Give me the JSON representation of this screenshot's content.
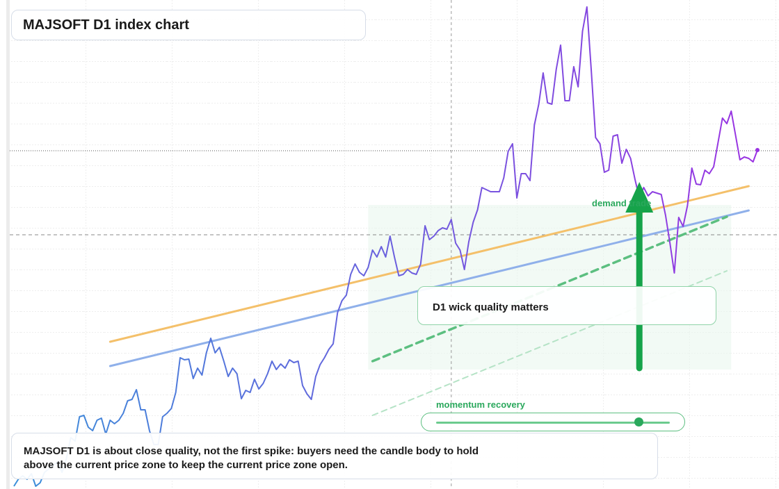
{
  "chart_data": {
    "type": "line",
    "title": "MAJSOFT D1 index chart",
    "note": "D1 wick quality matters",
    "zone_label": "demand trade",
    "slider_label": "momentum recovery",
    "body": [
      "MAJSOFT D1 is about close quality, not the first spike: buyers need the candle body to hold",
      "above the current price zone to keep the current price zone open."
    ],
    "xlim": [
      0,
      170
    ],
    "ylim": [
      0,
      704
    ],
    "series": [
      {
        "colors": [
          "#3a8fd9",
          "#9a32e2"
        ],
        "values": [
          4,
          14,
          19,
          14,
          22,
          4,
          9,
          24,
          29,
          34,
          39,
          24,
          44,
          74,
          69,
          104,
          106,
          89,
          84,
          99,
          102,
          79,
          99,
          94,
          99,
          109,
          127,
          129,
          143,
          114,
          114,
          84,
          64,
          64,
          104,
          109,
          116,
          139,
          189,
          186,
          187,
          159,
          174,
          164,
          196,
          217,
          196,
          204,
          184,
          162,
          174,
          166,
          130,
          142,
          139,
          158,
          144,
          152,
          166,
          184,
          172,
          180,
          174,
          186,
          182,
          184,
          149,
          137,
          129,
          162,
          179,
          189,
          201,
          209,
          254,
          271,
          279,
          309,
          324,
          312,
          307,
          319,
          344,
          334,
          349,
          334,
          364,
          334,
          307,
          309,
          316,
          311,
          309,
          324,
          379,
          359,
          364,
          372,
          376,
          374,
          388,
          354,
          344,
          316,
          356,
          384,
          402,
          434,
          431,
          428,
          428,
          428,
          448,
          486,
          497,
          419,
          454,
          454,
          444,
          524,
          554,
          599,
          556,
          554,
          604,
          639,
          559,
          559,
          608,
          579,
          659,
          694,
          604,
          506,
          497,
          456,
          459,
          508,
          510,
          469,
          489,
          476,
          446,
          419,
          434,
          422,
          428,
          426,
          424,
          394,
          354,
          311,
          391,
          378,
          408,
          462,
          439,
          438,
          459,
          454,
          464,
          499,
          534,
          526,
          544,
          509,
          474,
          478,
          476,
          471,
          488
        ]
      }
    ],
    "trend_lines": [
      {
        "color": "#f4c06a",
        "dash": false,
        "start": [
          22,
          212
        ],
        "end": [
          168,
          436
        ]
      },
      {
        "color": "#8fb0ea",
        "dash": false,
        "start": [
          22,
          177
        ],
        "end": [
          168,
          401
        ]
      },
      {
        "color": "#5cbf80",
        "dash": true,
        "start": [
          82,
          184
        ],
        "end": [
          163,
          392
        ]
      },
      {
        "color": "#b5e3c6",
        "dash": true,
        "start": [
          82,
          106
        ],
        "end": [
          163,
          314
        ]
      }
    ],
    "levels": [
      {
        "value": 487,
        "style": "dotted"
      },
      {
        "value": 366,
        "style": "dashed"
      }
    ],
    "cursor_x": 100,
    "zone": {
      "x": [
        81,
        164
      ],
      "y": [
        172,
        409
      ]
    },
    "arrow": {
      "x": 143,
      "from": 174,
      "to": 442,
      "color": "#16a34a"
    }
  }
}
